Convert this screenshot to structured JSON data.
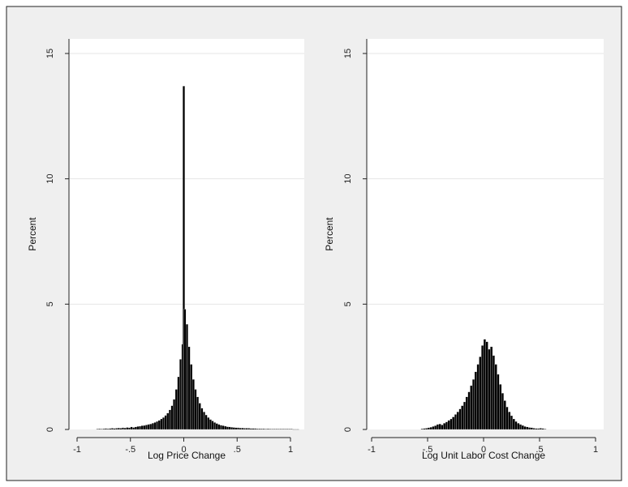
{
  "chart_data": [
    {
      "type": "bar",
      "subtype": "histogram",
      "xlabel": "Log Price Change",
      "ylabel": "Percent",
      "xlim": [
        -1.1,
        1.1
      ],
      "ylim": [
        0,
        15
      ],
      "x_ticks": [
        -1,
        -0.5,
        0,
        0.5,
        1
      ],
      "x_tick_labels": [
        "-1",
        "-.5",
        "0",
        ".5",
        "1"
      ],
      "y_ticks": [
        0,
        5,
        10,
        15
      ],
      "y_tick_labels": [
        "0",
        "5",
        "10",
        "15"
      ],
      "grid": "horizontal",
      "bins": [
        {
          "x": -0.81,
          "y": 0.02
        },
        {
          "x": -0.79,
          "y": 0.03
        },
        {
          "x": -0.77,
          "y": 0.02
        },
        {
          "x": -0.75,
          "y": 0.03
        },
        {
          "x": -0.73,
          "y": 0.04
        },
        {
          "x": -0.71,
          "y": 0.03
        },
        {
          "x": -0.69,
          "y": 0.04
        },
        {
          "x": -0.67,
          "y": 0.05
        },
        {
          "x": -0.65,
          "y": 0.04
        },
        {
          "x": -0.63,
          "y": 0.05
        },
        {
          "x": -0.61,
          "y": 0.06
        },
        {
          "x": -0.59,
          "y": 0.05
        },
        {
          "x": -0.57,
          "y": 0.07
        },
        {
          "x": -0.55,
          "y": 0.06
        },
        {
          "x": -0.53,
          "y": 0.08
        },
        {
          "x": -0.51,
          "y": 0.07
        },
        {
          "x": -0.49,
          "y": 0.1
        },
        {
          "x": -0.47,
          "y": 0.08
        },
        {
          "x": -0.45,
          "y": 0.1
        },
        {
          "x": -0.43,
          "y": 0.12
        },
        {
          "x": -0.41,
          "y": 0.13
        },
        {
          "x": -0.39,
          "y": 0.15
        },
        {
          "x": -0.37,
          "y": 0.16
        },
        {
          "x": -0.35,
          "y": 0.18
        },
        {
          "x": -0.33,
          "y": 0.2
        },
        {
          "x": -0.31,
          "y": 0.22
        },
        {
          "x": -0.29,
          "y": 0.25
        },
        {
          "x": -0.27,
          "y": 0.28
        },
        {
          "x": -0.25,
          "y": 0.32
        },
        {
          "x": -0.23,
          "y": 0.36
        },
        {
          "x": -0.21,
          "y": 0.42
        },
        {
          "x": -0.19,
          "y": 0.48
        },
        {
          "x": -0.17,
          "y": 0.56
        },
        {
          "x": -0.15,
          "y": 0.65
        },
        {
          "x": -0.13,
          "y": 0.78
        },
        {
          "x": -0.11,
          "y": 0.95
        },
        {
          "x": -0.09,
          "y": 1.2
        },
        {
          "x": -0.07,
          "y": 1.6
        },
        {
          "x": -0.05,
          "y": 2.1
        },
        {
          "x": -0.03,
          "y": 2.8
        },
        {
          "x": -0.01,
          "y": 3.4
        },
        {
          "x": 0.0,
          "y": 13.7
        },
        {
          "x": 0.01,
          "y": 4.8
        },
        {
          "x": 0.03,
          "y": 4.2
        },
        {
          "x": 0.05,
          "y": 3.3
        },
        {
          "x": 0.07,
          "y": 2.6
        },
        {
          "x": 0.09,
          "y": 2.0
        },
        {
          "x": 0.11,
          "y": 1.6
        },
        {
          "x": 0.13,
          "y": 1.3
        },
        {
          "x": 0.15,
          "y": 1.05
        },
        {
          "x": 0.17,
          "y": 0.85
        },
        {
          "x": 0.19,
          "y": 0.7
        },
        {
          "x": 0.21,
          "y": 0.58
        },
        {
          "x": 0.23,
          "y": 0.48
        },
        {
          "x": 0.25,
          "y": 0.4
        },
        {
          "x": 0.27,
          "y": 0.34
        },
        {
          "x": 0.29,
          "y": 0.28
        },
        {
          "x": 0.31,
          "y": 0.24
        },
        {
          "x": 0.33,
          "y": 0.2
        },
        {
          "x": 0.35,
          "y": 0.17
        },
        {
          "x": 0.37,
          "y": 0.15
        },
        {
          "x": 0.39,
          "y": 0.13
        },
        {
          "x": 0.41,
          "y": 0.11
        },
        {
          "x": 0.43,
          "y": 0.1
        },
        {
          "x": 0.45,
          "y": 0.09
        },
        {
          "x": 0.47,
          "y": 0.08
        },
        {
          "x": 0.49,
          "y": 0.07
        },
        {
          "x": 0.51,
          "y": 0.07
        },
        {
          "x": 0.53,
          "y": 0.06
        },
        {
          "x": 0.55,
          "y": 0.06
        },
        {
          "x": 0.57,
          "y": 0.05
        },
        {
          "x": 0.59,
          "y": 0.05
        },
        {
          "x": 0.61,
          "y": 0.05
        },
        {
          "x": 0.63,
          "y": 0.04
        },
        {
          "x": 0.65,
          "y": 0.04
        },
        {
          "x": 0.67,
          "y": 0.04
        },
        {
          "x": 0.69,
          "y": 0.03
        },
        {
          "x": 0.71,
          "y": 0.03
        },
        {
          "x": 0.73,
          "y": 0.03
        },
        {
          "x": 0.75,
          "y": 0.03
        },
        {
          "x": 0.77,
          "y": 0.02
        },
        {
          "x": 0.79,
          "y": 0.03
        },
        {
          "x": 0.81,
          "y": 0.02
        },
        {
          "x": 0.83,
          "y": 0.02
        },
        {
          "x": 0.85,
          "y": 0.02
        },
        {
          "x": 0.87,
          "y": 0.02
        },
        {
          "x": 0.89,
          "y": 0.02
        },
        {
          "x": 0.91,
          "y": 0.02
        },
        {
          "x": 0.93,
          "y": 0.02
        },
        {
          "x": 0.95,
          "y": 0.02
        },
        {
          "x": 0.97,
          "y": 0.02
        },
        {
          "x": 0.99,
          "y": 0.02
        },
        {
          "x": 1.01,
          "y": 0.02
        },
        {
          "x": 1.03,
          "y": 0.01
        },
        {
          "x": 1.05,
          "y": 0.01
        },
        {
          "x": 1.07,
          "y": 0.01
        }
      ]
    },
    {
      "type": "bar",
      "subtype": "histogram",
      "xlabel": "Log Unit Labor Cost Change",
      "ylabel": "Percent",
      "xlim": [
        -1.1,
        1.1
      ],
      "ylim": [
        0,
        15
      ],
      "x_ticks": [
        -1,
        -0.5,
        0,
        0.5,
        1
      ],
      "x_tick_labels": [
        "-1",
        "-.5",
        "0",
        ".5",
        "1"
      ],
      "y_ticks": [
        0,
        5,
        10,
        15
      ],
      "y_tick_labels": [
        "0",
        "5",
        "10",
        "15"
      ],
      "grid": "horizontal",
      "bins": [
        {
          "x": -0.55,
          "y": 0.03
        },
        {
          "x": -0.53,
          "y": 0.04
        },
        {
          "x": -0.51,
          "y": 0.05
        },
        {
          "x": -0.49,
          "y": 0.07
        },
        {
          "x": -0.47,
          "y": 0.09
        },
        {
          "x": -0.45,
          "y": 0.12
        },
        {
          "x": -0.43,
          "y": 0.15
        },
        {
          "x": -0.41,
          "y": 0.2
        },
        {
          "x": -0.39,
          "y": 0.22
        },
        {
          "x": -0.37,
          "y": 0.18
        },
        {
          "x": -0.35,
          "y": 0.25
        },
        {
          "x": -0.33,
          "y": 0.3
        },
        {
          "x": -0.31,
          "y": 0.36
        },
        {
          "x": -0.29,
          "y": 0.42
        },
        {
          "x": -0.27,
          "y": 0.5
        },
        {
          "x": -0.25,
          "y": 0.6
        },
        {
          "x": -0.23,
          "y": 0.7
        },
        {
          "x": -0.21,
          "y": 0.82
        },
        {
          "x": -0.19,
          "y": 0.95
        },
        {
          "x": -0.17,
          "y": 1.1
        },
        {
          "x": -0.15,
          "y": 1.3
        },
        {
          "x": -0.13,
          "y": 1.5
        },
        {
          "x": -0.11,
          "y": 1.75
        },
        {
          "x": -0.09,
          "y": 2.0
        },
        {
          "x": -0.07,
          "y": 2.3
        },
        {
          "x": -0.05,
          "y": 2.6
        },
        {
          "x": -0.03,
          "y": 2.9
        },
        {
          "x": -0.01,
          "y": 3.35
        },
        {
          "x": 0.01,
          "y": 3.6
        },
        {
          "x": 0.03,
          "y": 3.5
        },
        {
          "x": 0.05,
          "y": 3.2
        },
        {
          "x": 0.07,
          "y": 3.3
        },
        {
          "x": 0.09,
          "y": 2.95
        },
        {
          "x": 0.11,
          "y": 2.6
        },
        {
          "x": 0.13,
          "y": 2.2
        },
        {
          "x": 0.15,
          "y": 1.8
        },
        {
          "x": 0.17,
          "y": 1.45
        },
        {
          "x": 0.19,
          "y": 1.15
        },
        {
          "x": 0.21,
          "y": 0.9
        },
        {
          "x": 0.23,
          "y": 0.7
        },
        {
          "x": 0.25,
          "y": 0.55
        },
        {
          "x": 0.27,
          "y": 0.42
        },
        {
          "x": 0.29,
          "y": 0.32
        },
        {
          "x": 0.31,
          "y": 0.25
        },
        {
          "x": 0.33,
          "y": 0.2
        },
        {
          "x": 0.35,
          "y": 0.16
        },
        {
          "x": 0.37,
          "y": 0.12
        },
        {
          "x": 0.39,
          "y": 0.1
        },
        {
          "x": 0.41,
          "y": 0.08
        },
        {
          "x": 0.43,
          "y": 0.07
        },
        {
          "x": 0.45,
          "y": 0.05
        },
        {
          "x": 0.47,
          "y": 0.04
        },
        {
          "x": 0.49,
          "y": 0.04
        },
        {
          "x": 0.51,
          "y": 0.05
        },
        {
          "x": 0.53,
          "y": 0.04
        },
        {
          "x": 0.55,
          "y": 0.02
        }
      ]
    }
  ],
  "style": {
    "bar_color": "#000000",
    "bar_edge_color": "#ffffff",
    "panel_background": "#efefef",
    "plot_background": "#ffffff",
    "grid_color": "#e6e6e6",
    "axis_color": "#222222"
  }
}
